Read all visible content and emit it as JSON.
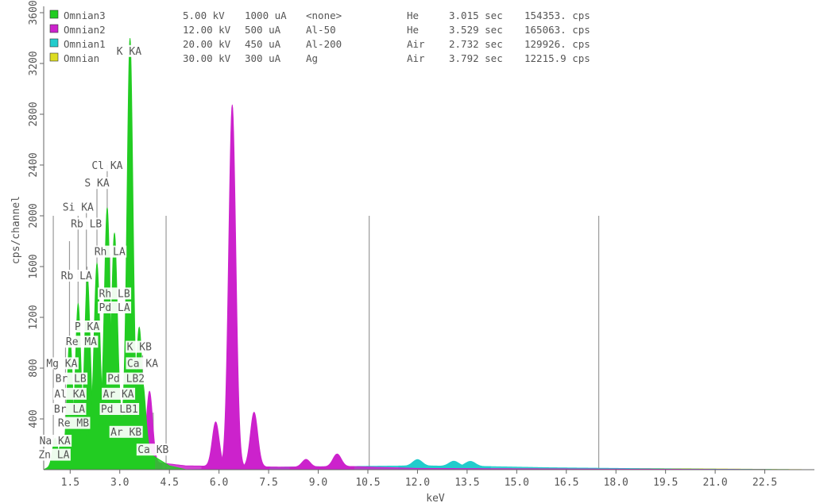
{
  "chart_data": {
    "type": "area",
    "title": "",
    "xlabel": "keV",
    "ylabel": "cps/channel",
    "xlim": [
      0.7,
      24.0
    ],
    "ylim": [
      0,
      3650
    ],
    "x_ticks": [
      "1.5",
      "3.0",
      "4.5",
      "6.0",
      "7.5",
      "9.0",
      "10.5",
      "12.0",
      "13.5",
      "15.0",
      "16.5",
      "18.0",
      "19.5",
      "21.0",
      "22.5"
    ],
    "y_ticks": [
      "400",
      "800",
      "1200",
      "1600",
      "2000",
      "2400",
      "2800",
      "3200",
      "3600"
    ],
    "legend_position": "top-left",
    "legend": [
      {
        "name": "Omnian3",
        "color": "#22cc22",
        "kv": "5.00 kV",
        "ua": "1000 uA",
        "filter": "<none>",
        "medium": "He",
        "time": "3.015 sec",
        "rate": "154353. cps"
      },
      {
        "name": "Omnian2",
        "color": "#cc22cc",
        "kv": "12.00 kV",
        "ua": "500 uA",
        "filter": "Al-50",
        "medium": "He",
        "time": "3.529 sec",
        "rate": "165063. cps"
      },
      {
        "name": "Omnian1",
        "color": "#22cccc",
        "kv": "20.00 kV",
        "ua": "450 uA",
        "filter": "Al-200",
        "medium": "Air",
        "time": "2.732 sec",
        "rate": "129926. cps"
      },
      {
        "name": "Omnian",
        "color": "#dddd22",
        "kv": "30.00 kV",
        "ua": "300 uA",
        "filter": "Ag",
        "medium": "Air",
        "time": "3.792 sec",
        "rate": "12215.9 cps"
      }
    ],
    "series": [
      {
        "name": "Omnian3",
        "color": "#22cc22",
        "background": [
          [
            0.7,
            0
          ],
          [
            1.0,
            40
          ],
          [
            1.5,
            150
          ],
          [
            2.0,
            270
          ],
          [
            2.5,
            360
          ],
          [
            2.8,
            370
          ],
          [
            3.2,
            330
          ],
          [
            3.6,
            220
          ],
          [
            4.0,
            110
          ],
          [
            4.5,
            30
          ],
          [
            5.0,
            0
          ]
        ],
        "peaks": [
          [
            1.04,
            200
          ],
          [
            1.25,
            150
          ],
          [
            1.49,
            900
          ],
          [
            1.74,
            1100
          ],
          [
            2.02,
            1250
          ],
          [
            2.31,
            1300
          ],
          [
            2.62,
            1700
          ],
          [
            2.84,
            1500
          ],
          [
            3.31,
            3100
          ],
          [
            3.59,
            900
          ],
          [
            3.69,
            500
          ]
        ]
      },
      {
        "name": "Omnian2",
        "color": "#cc22cc",
        "background": [
          [
            0.7,
            0
          ],
          [
            2.0,
            50
          ],
          [
            3.0,
            140
          ],
          [
            4.0,
            60
          ],
          [
            5.0,
            30
          ],
          [
            8.0,
            20
          ],
          [
            10.0,
            25
          ],
          [
            12.0,
            10
          ],
          [
            23.0,
            0
          ]
        ],
        "peaks": [
          [
            2.3,
            200
          ],
          [
            2.7,
            230
          ],
          [
            3.3,
            400
          ],
          [
            3.9,
            550
          ],
          [
            5.9,
            350
          ],
          [
            6.4,
            2850
          ],
          [
            7.06,
            430
          ],
          [
            8.63,
            60
          ],
          [
            9.57,
            100
          ]
        ]
      },
      {
        "name": "Omnian1",
        "color": "#22cccc",
        "background": [
          [
            5.0,
            0
          ],
          [
            8.0,
            20
          ],
          [
            10.0,
            25
          ],
          [
            12.0,
            30
          ],
          [
            14.0,
            25
          ],
          [
            16.0,
            15
          ],
          [
            20.0,
            5
          ],
          [
            23.5,
            0
          ]
        ],
        "peaks": [
          [
            8.64,
            40
          ],
          [
            12.0,
            50
          ],
          [
            13.1,
            40
          ],
          [
            13.6,
            40
          ]
        ]
      },
      {
        "name": "Omnian",
        "color": "#dddd22",
        "background": [
          [
            10.0,
            0
          ],
          [
            15.0,
            10
          ],
          [
            20.0,
            8
          ],
          [
            23.8,
            0
          ]
        ],
        "peaks": []
      }
    ],
    "reference_lines": [
      {
        "x": 0.99,
        "y": 2000
      },
      {
        "x": 1.36,
        "y": 1000
      },
      {
        "x": 1.48,
        "y": 1800
      },
      {
        "x": 1.74,
        "y": 2000
      },
      {
        "x": 1.99,
        "y": 2100
      },
      {
        "x": 2.01,
        "y": 1600
      },
      {
        "x": 2.31,
        "y": 2250
      },
      {
        "x": 2.62,
        "y": 2400
      },
      {
        "x": 2.7,
        "y": 1700
      },
      {
        "x": 2.84,
        "y": 1750
      },
      {
        "x": 3.31,
        "y": 3100
      },
      {
        "x": 3.59,
        "y": 1100
      },
      {
        "x": 3.69,
        "y": 900
      },
      {
        "x": 4.01,
        "y": 450
      },
      {
        "x": 4.4,
        "y": 2000
      },
      {
        "x": 10.54,
        "y": 2000
      },
      {
        "x": 17.48,
        "y": 2000
      }
    ],
    "annotations": [
      {
        "text": "K KA",
        "x": 3.28,
        "y": 3270
      },
      {
        "text": "Cl KA",
        "x": 2.62,
        "y": 2370
      },
      {
        "text": "S KA",
        "x": 2.31,
        "y": 2230
      },
      {
        "text": "Si KA",
        "x": 1.74,
        "y": 2040
      },
      {
        "text": "Rb LB",
        "x": 1.99,
        "y": 1910
      },
      {
        "text": "Rh LA",
        "x": 2.7,
        "y": 1690
      },
      {
        "text": "Rb LA",
        "x": 1.69,
        "y": 1500
      },
      {
        "text": "Rh LB",
        "x": 2.84,
        "y": 1360
      },
      {
        "text": "Pd LA",
        "x": 2.84,
        "y": 1250
      },
      {
        "text": "P KA",
        "x": 2.01,
        "y": 1100
      },
      {
        "text": "Re MA",
        "x": 1.84,
        "y": 980
      },
      {
        "text": "K KB",
        "x": 3.59,
        "y": 940
      },
      {
        "text": "Mg KA",
        "x": 1.25,
        "y": 810
      },
      {
        "text": "Ca KA",
        "x": 3.69,
        "y": 810
      },
      {
        "text": "Br LB",
        "x": 1.52,
        "y": 690
      },
      {
        "text": "Pd LB2",
        "x": 3.19,
        "y": 690
      },
      {
        "text": "Al KA",
        "x": 1.49,
        "y": 570
      },
      {
        "text": "Ar KA",
        "x": 2.96,
        "y": 570
      },
      {
        "text": "Br LA",
        "x": 1.48,
        "y": 450
      },
      {
        "text": "Pd LB1",
        "x": 2.99,
        "y": 450
      },
      {
        "text": "Re MB",
        "x": 1.6,
        "y": 340
      },
      {
        "text": "Ar KB",
        "x": 3.19,
        "y": 270
      },
      {
        "text": "Na KA",
        "x": 1.04,
        "y": 200
      },
      {
        "text": "Ca KB",
        "x": 4.01,
        "y": 130
      },
      {
        "text": "Zn LA",
        "x": 1.01,
        "y": 90
      }
    ]
  }
}
